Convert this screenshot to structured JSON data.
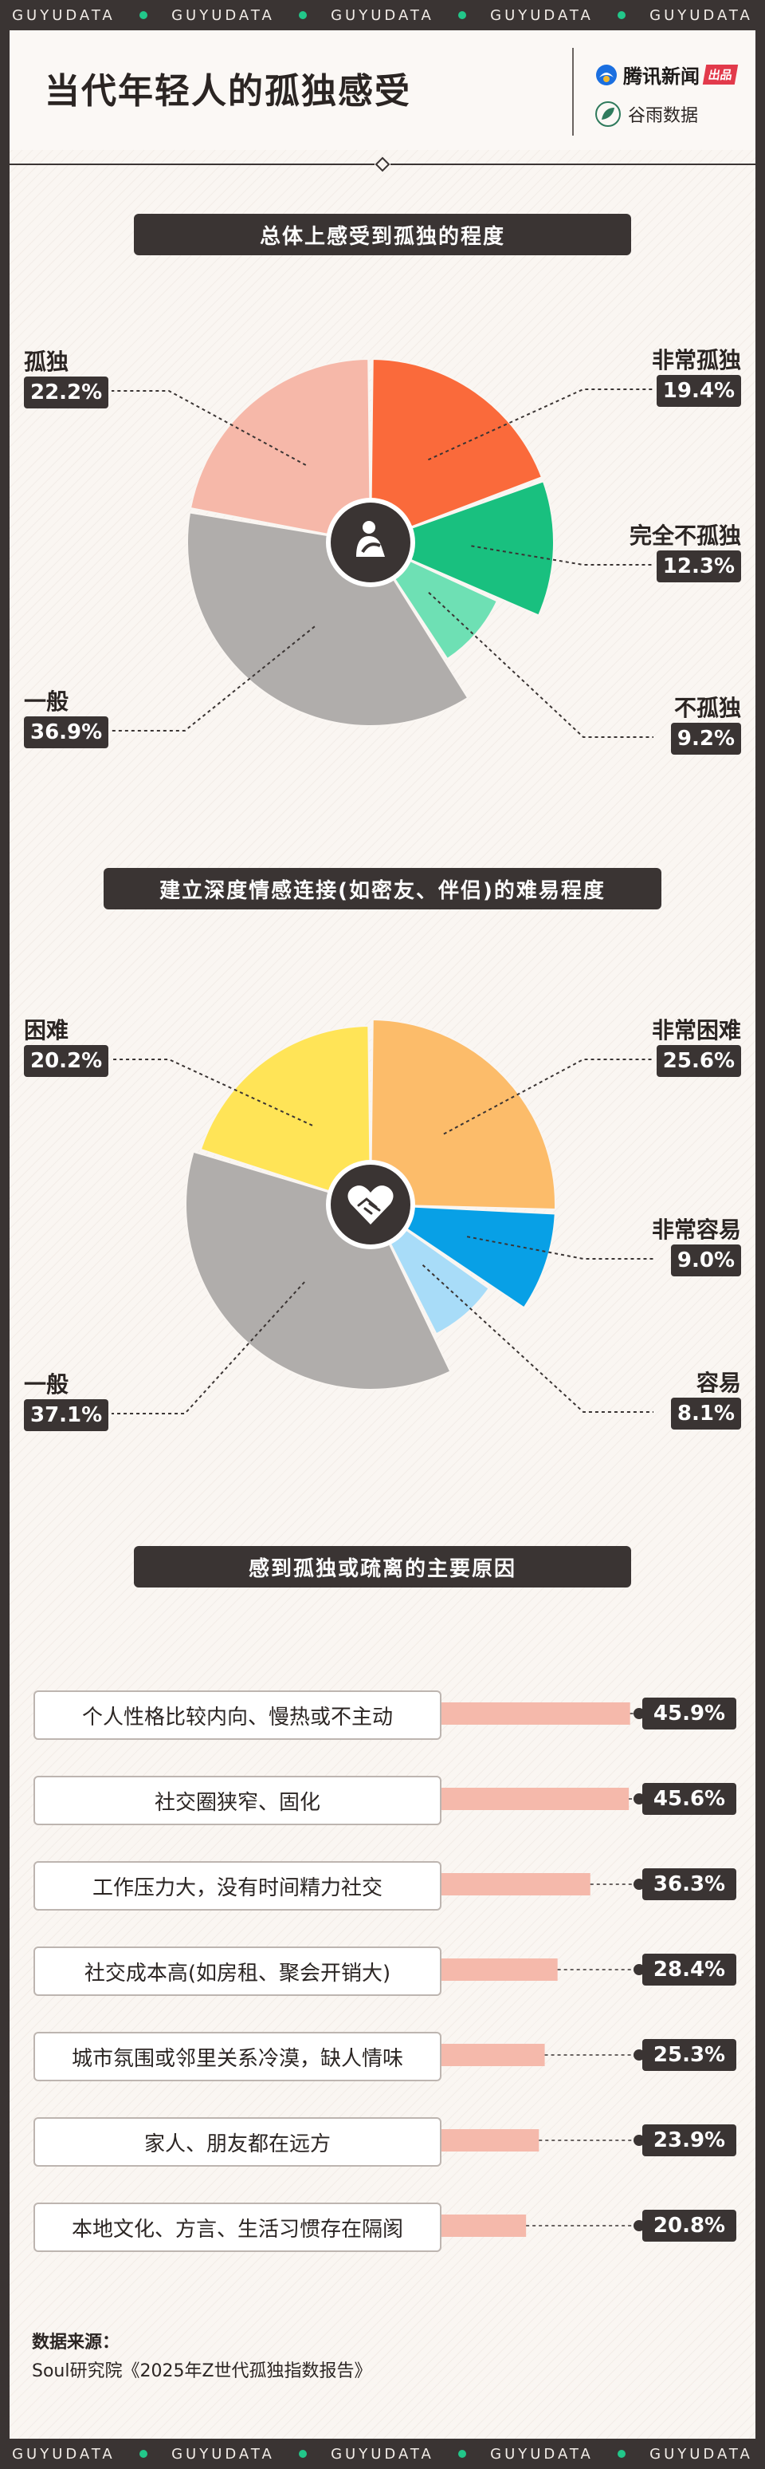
{
  "band_label": "GUYUDATA",
  "title": "当代年轻人的孤独感受",
  "brand": {
    "primary": "腾讯新闻",
    "badge": "出品",
    "secondary": "谷雨数据"
  },
  "colors": {
    "dark": "#3a3433",
    "accent_green": "#22c78a",
    "bar": "#f5b9ab"
  },
  "source": {
    "label": "数据来源：",
    "text": "Soul研究院《2025年Z世代孤独指数报告》"
  },
  "chart_data": [
    {
      "type": "pie",
      "title": "总体上感受到孤独的程度",
      "center_icon": "hugging-knees-person-icon",
      "slices": [
        {
          "label": "非常孤独",
          "value": 19.4,
          "display": "19.4%",
          "color": "#fa6a3b"
        },
        {
          "label": "完全不孤独",
          "value": 12.3,
          "display": "12.3%",
          "color": "#19c07f"
        },
        {
          "label": "不孤独",
          "value": 9.2,
          "display": "9.2%",
          "color": "#6ee0b4"
        },
        {
          "label": "一般",
          "value": 36.9,
          "display": "36.9%",
          "color": "#b0adab"
        },
        {
          "label": "孤独",
          "value": 22.2,
          "display": "22.2%",
          "color": "#f6b8a9"
        }
      ]
    },
    {
      "type": "pie",
      "title": "建立深度情感连接(如密友、伴侣)的难易程度",
      "center_icon": "handshake-heart-icon",
      "slices": [
        {
          "label": "非常困难",
          "value": 25.6,
          "display": "25.6%",
          "color": "#fcbc6a"
        },
        {
          "label": "非常容易",
          "value": 9.0,
          "display": "9.0%",
          "color": "#08a0e6"
        },
        {
          "label": "容易",
          "value": 8.1,
          "display": "8.1%",
          "color": "#a8dcf8"
        },
        {
          "label": "一般",
          "value": 37.1,
          "display": "37.1%",
          "color": "#b0adab"
        },
        {
          "label": "困难",
          "value": 20.2,
          "display": "20.2%",
          "color": "#ffe457"
        }
      ]
    },
    {
      "type": "bar",
      "orientation": "horizontal",
      "title": "感到孤独或疏离的主要原因",
      "categories": [
        "个人性格比较内向、慢热或不主动",
        "社交圈狭窄、固化",
        "工作压力大，没有时间精力社交",
        "社交成本高(如房租、聚会开销大)",
        "城市氛围或邻里关系冷漠，缺人情味",
        "家人、朋友都在远方",
        "本地文化、方言、生活习惯存在隔阂"
      ],
      "values": [
        45.9,
        45.6,
        36.3,
        28.4,
        25.3,
        23.9,
        20.8
      ],
      "display": [
        "45.9%",
        "45.6%",
        "36.3%",
        "28.4%",
        "25.3%",
        "23.9%",
        "20.8%"
      ],
      "unit": "%"
    }
  ]
}
